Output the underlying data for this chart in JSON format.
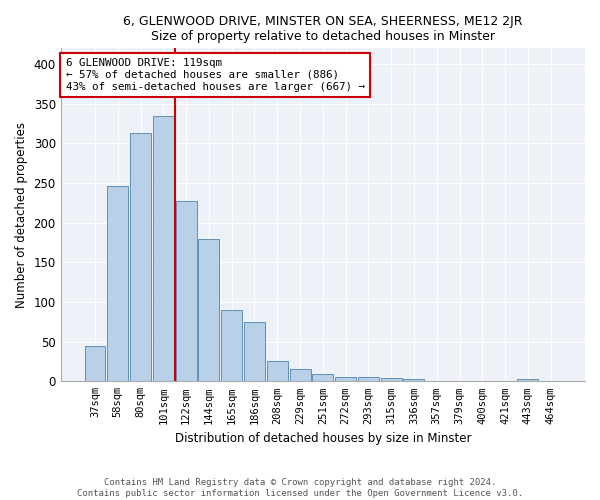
{
  "title1": "6, GLENWOOD DRIVE, MINSTER ON SEA, SHEERNESS, ME12 2JR",
  "title2": "Size of property relative to detached houses in Minster",
  "xlabel": "Distribution of detached houses by size in Minster",
  "ylabel": "Number of detached properties",
  "categories": [
    "37sqm",
    "58sqm",
    "80sqm",
    "101sqm",
    "122sqm",
    "144sqm",
    "165sqm",
    "186sqm",
    "208sqm",
    "229sqm",
    "251sqm",
    "272sqm",
    "293sqm",
    "315sqm",
    "336sqm",
    "357sqm",
    "379sqm",
    "400sqm",
    "421sqm",
    "443sqm",
    "464sqm"
  ],
  "values": [
    44,
    246,
    313,
    335,
    228,
    180,
    90,
    75,
    26,
    16,
    9,
    5,
    5,
    4,
    3,
    0,
    0,
    0,
    0,
    3,
    0
  ],
  "bar_color": "#b8d0e8",
  "bar_edge_color": "#6090b8",
  "property_line_index": 4,
  "annotation_title": "6 GLENWOOD DRIVE: 119sqm",
  "annotation_line1": "← 57% of detached houses are smaller (886)",
  "annotation_line2": "43% of semi-detached houses are larger (667) →",
  "annotation_box_color": "#ffffff",
  "annotation_box_edge": "#cc0000",
  "line_color": "#cc0000",
  "ylim": [
    0,
    420
  ],
  "yticks": [
    0,
    50,
    100,
    150,
    200,
    250,
    300,
    350,
    400
  ],
  "footer1": "Contains HM Land Registry data © Crown copyright and database right 2024.",
  "footer2": "Contains public sector information licensed under the Open Government Licence v3.0.",
  "bg_color": "#eef2f8"
}
